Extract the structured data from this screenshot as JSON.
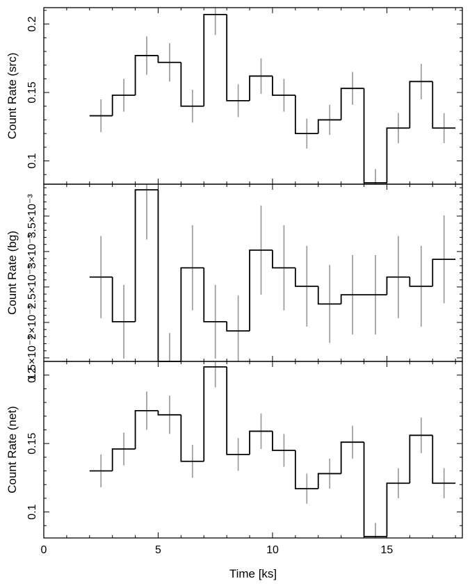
{
  "chart_data": [
    {
      "type": "line",
      "ylabel": "Count Rate (src)",
      "xlim": [
        0,
        18.3
      ],
      "ylim": [
        0.083,
        0.212
      ],
      "yticks": [
        0.1,
        0.15,
        0.2
      ],
      "yticklabels": [
        "0.1",
        "0.15",
        "0.2"
      ],
      "ytick_minor_step": 0.01,
      "show_x_ticklabels": false,
      "step_color": "#000000",
      "error_color": "#a0a0a0",
      "bins": [
        {
          "x0": 2,
          "x1": 3,
          "y": 0.133,
          "err": 0.012
        },
        {
          "x0": 3,
          "x1": 4,
          "y": 0.148,
          "err": 0.012
        },
        {
          "x0": 4,
          "x1": 5,
          "y": 0.177,
          "err": 0.014
        },
        {
          "x0": 5,
          "x1": 6,
          "y": 0.172,
          "err": 0.014
        },
        {
          "x0": 6,
          "x1": 7,
          "y": 0.14,
          "err": 0.012
        },
        {
          "x0": 7,
          "x1": 8,
          "y": 0.207,
          "err": 0.015
        },
        {
          "x0": 8,
          "x1": 9,
          "y": 0.144,
          "err": 0.012
        },
        {
          "x0": 9,
          "x1": 10,
          "y": 0.162,
          "err": 0.013
        },
        {
          "x0": 10,
          "x1": 11,
          "y": 0.148,
          "err": 0.012
        },
        {
          "x0": 11,
          "x1": 12,
          "y": 0.12,
          "err": 0.011
        },
        {
          "x0": 12,
          "x1": 13,
          "y": 0.13,
          "err": 0.011
        },
        {
          "x0": 13,
          "x1": 14,
          "y": 0.153,
          "err": 0.012
        },
        {
          "x0": 14,
          "x1": 15,
          "y": 0.084,
          "err": 0.01
        },
        {
          "x0": 15,
          "x1": 16,
          "y": 0.124,
          "err": 0.011
        },
        {
          "x0": 16,
          "x1": 17,
          "y": 0.158,
          "err": 0.013
        },
        {
          "x0": 17,
          "x1": 18,
          "y": 0.124,
          "err": 0.011
        }
      ]
    },
    {
      "type": "line",
      "ylabel": "Count Rate (bg)",
      "xlim": [
        0,
        18.3
      ],
      "ylim": [
        0.00145,
        0.00395
      ],
      "yticks": [
        0.0015,
        0.002,
        0.0025,
        0.003,
        0.0035
      ],
      "yticklabels": [
        "1.5×10⁻³",
        "2×10⁻³",
        "2.5×10⁻³",
        "3×10⁻³",
        "3.5×10⁻³"
      ],
      "ytick_minor_step": 0.0001,
      "show_x_ticklabels": false,
      "step_color": "#000000",
      "error_color": "#a0a0a0",
      "bins": [
        {
          "x0": 2,
          "x1": 3,
          "y": 0.00264,
          "err": 0.00058
        },
        {
          "x0": 3,
          "x1": 4,
          "y": 0.00201,
          "err": 0.00052
        },
        {
          "x0": 4,
          "x1": 5,
          "y": 0.00387,
          "err": 0.0007
        },
        {
          "x0": 5,
          "x1": 6,
          "y": 0.00145,
          "err": 0.0004
        },
        {
          "x0": 6,
          "x1": 7,
          "y": 0.00277,
          "err": 0.0006
        },
        {
          "x0": 7,
          "x1": 8,
          "y": 0.00201,
          "err": 0.00052
        },
        {
          "x0": 8,
          "x1": 9,
          "y": 0.00188,
          "err": 0.0005
        },
        {
          "x0": 9,
          "x1": 10,
          "y": 0.00302,
          "err": 0.00063
        },
        {
          "x0": 10,
          "x1": 11,
          "y": 0.00277,
          "err": 0.0006
        },
        {
          "x0": 11,
          "x1": 12,
          "y": 0.00251,
          "err": 0.00057
        },
        {
          "x0": 12,
          "x1": 13,
          "y": 0.00226,
          "err": 0.00055
        },
        {
          "x0": 13,
          "x1": 14,
          "y": 0.00239,
          "err": 0.00056
        },
        {
          "x0": 14,
          "x1": 15,
          "y": 0.00239,
          "err": 0.00056
        },
        {
          "x0": 15,
          "x1": 16,
          "y": 0.00264,
          "err": 0.00058
        },
        {
          "x0": 16,
          "x1": 17,
          "y": 0.00251,
          "err": 0.00057
        },
        {
          "x0": 17,
          "x1": 18,
          "y": 0.00289,
          "err": 0.00062
        }
      ]
    },
    {
      "type": "line",
      "ylabel": "Count Rate (net)",
      "xlim": [
        0,
        18.3
      ],
      "ylim": [
        0.081,
        0.21
      ],
      "yticks": [
        0.1,
        0.15,
        0.2
      ],
      "yticklabels": [
        "0.1",
        "0.15",
        "0.2"
      ],
      "ytick_minor_step": 0.01,
      "show_x_ticklabels": true,
      "xlabel": "Time [ks]",
      "xticks": [
        0,
        5,
        10,
        15
      ],
      "xticklabels": [
        "0",
        "5",
        "10",
        "15"
      ],
      "xtick_minor_step": 1,
      "step_color": "#000000",
      "error_color": "#a0a0a0",
      "bins": [
        {
          "x0": 2,
          "x1": 3,
          "y": 0.13,
          "err": 0.012
        },
        {
          "x0": 3,
          "x1": 4,
          "y": 0.146,
          "err": 0.012
        },
        {
          "x0": 4,
          "x1": 5,
          "y": 0.174,
          "err": 0.014
        },
        {
          "x0": 5,
          "x1": 6,
          "y": 0.171,
          "err": 0.014
        },
        {
          "x0": 6,
          "x1": 7,
          "y": 0.137,
          "err": 0.012
        },
        {
          "x0": 7,
          "x1": 8,
          "y": 0.206,
          "err": 0.015
        },
        {
          "x0": 8,
          "x1": 9,
          "y": 0.142,
          "err": 0.012
        },
        {
          "x0": 9,
          "x1": 10,
          "y": 0.159,
          "err": 0.013
        },
        {
          "x0": 10,
          "x1": 11,
          "y": 0.145,
          "err": 0.012
        },
        {
          "x0": 11,
          "x1": 12,
          "y": 0.117,
          "err": 0.011
        },
        {
          "x0": 12,
          "x1": 13,
          "y": 0.128,
          "err": 0.011
        },
        {
          "x0": 13,
          "x1": 14,
          "y": 0.151,
          "err": 0.012
        },
        {
          "x0": 14,
          "x1": 15,
          "y": 0.082,
          "err": 0.01
        },
        {
          "x0": 15,
          "x1": 16,
          "y": 0.121,
          "err": 0.011
        },
        {
          "x0": 16,
          "x1": 17,
          "y": 0.156,
          "err": 0.013
        },
        {
          "x0": 17,
          "x1": 18,
          "y": 0.121,
          "err": 0.011
        }
      ]
    }
  ]
}
